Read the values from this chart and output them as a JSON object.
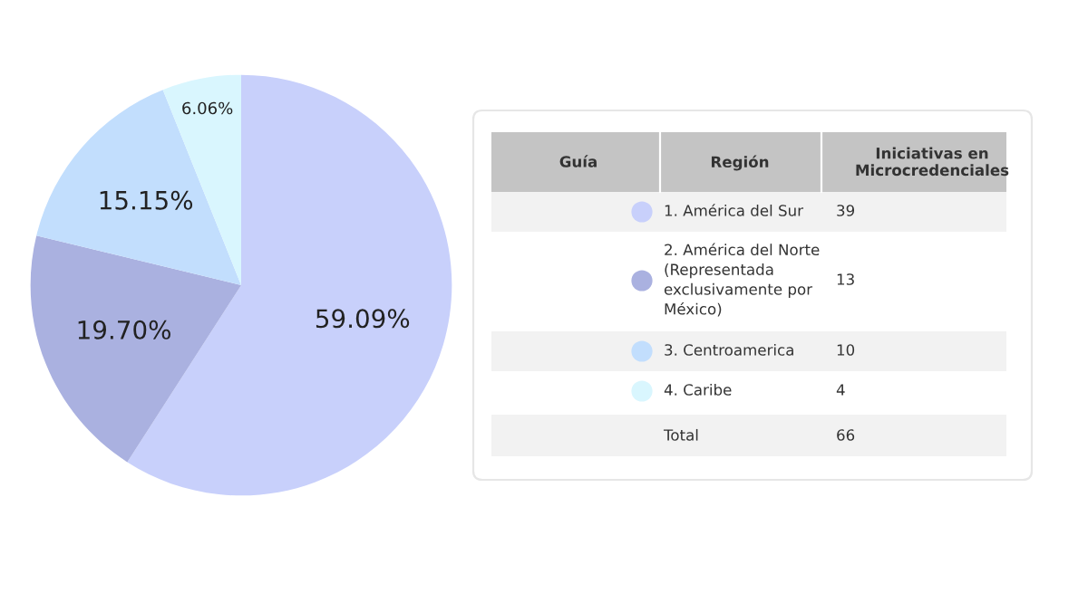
{
  "chart_data": {
    "type": "pie",
    "categories": [
      "1. América del Sur",
      "2. América del Norte (Representada exclusivamente por México)",
      "3. Centroamerica",
      "4. Caribe"
    ],
    "values": [
      59.09,
      19.7,
      15.15,
      6.06
    ],
    "value_labels": [
      "59.09%",
      "19.70%",
      "15.15%",
      "6.06%"
    ],
    "colors": [
      "#c8d0fb",
      "#aab1e0",
      "#c2defd",
      "#d9f6fe"
    ],
    "legend": "right",
    "legend_title": "Guía",
    "annotations": [
      "Región",
      "Iniciativas en Microcredenciales",
      "39",
      "13",
      "10",
      "4",
      "Total",
      "66"
    ]
  }
}
